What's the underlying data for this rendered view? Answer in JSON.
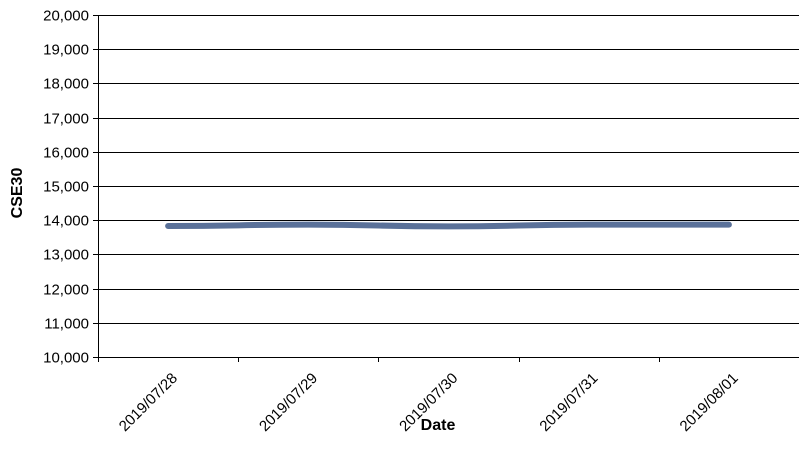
{
  "chart_data": {
    "type": "line",
    "title": "",
    "xlabel": "Date",
    "ylabel": "CSE30",
    "categories": [
      "2019/07/28",
      "2019/07/29",
      "2019/07/30",
      "2019/07/31",
      "2019/08/01"
    ],
    "series": [
      {
        "values": [
          13830,
          13870,
          13820,
          13870,
          13870
        ],
        "color": "#5a7199"
      }
    ],
    "ylim": [
      10000,
      20000
    ],
    "yticks": [
      10000,
      11000,
      12000,
      13000,
      14000,
      15000,
      16000,
      17000,
      18000,
      19000,
      20000
    ],
    "ytick_labels": [
      "10,000",
      "11,000",
      "12,000",
      "13,000",
      "14,000",
      "15,000",
      "16,000",
      "17,000",
      "18,000",
      "19,000",
      "20,000"
    ],
    "grid": true,
    "legend": "none"
  }
}
